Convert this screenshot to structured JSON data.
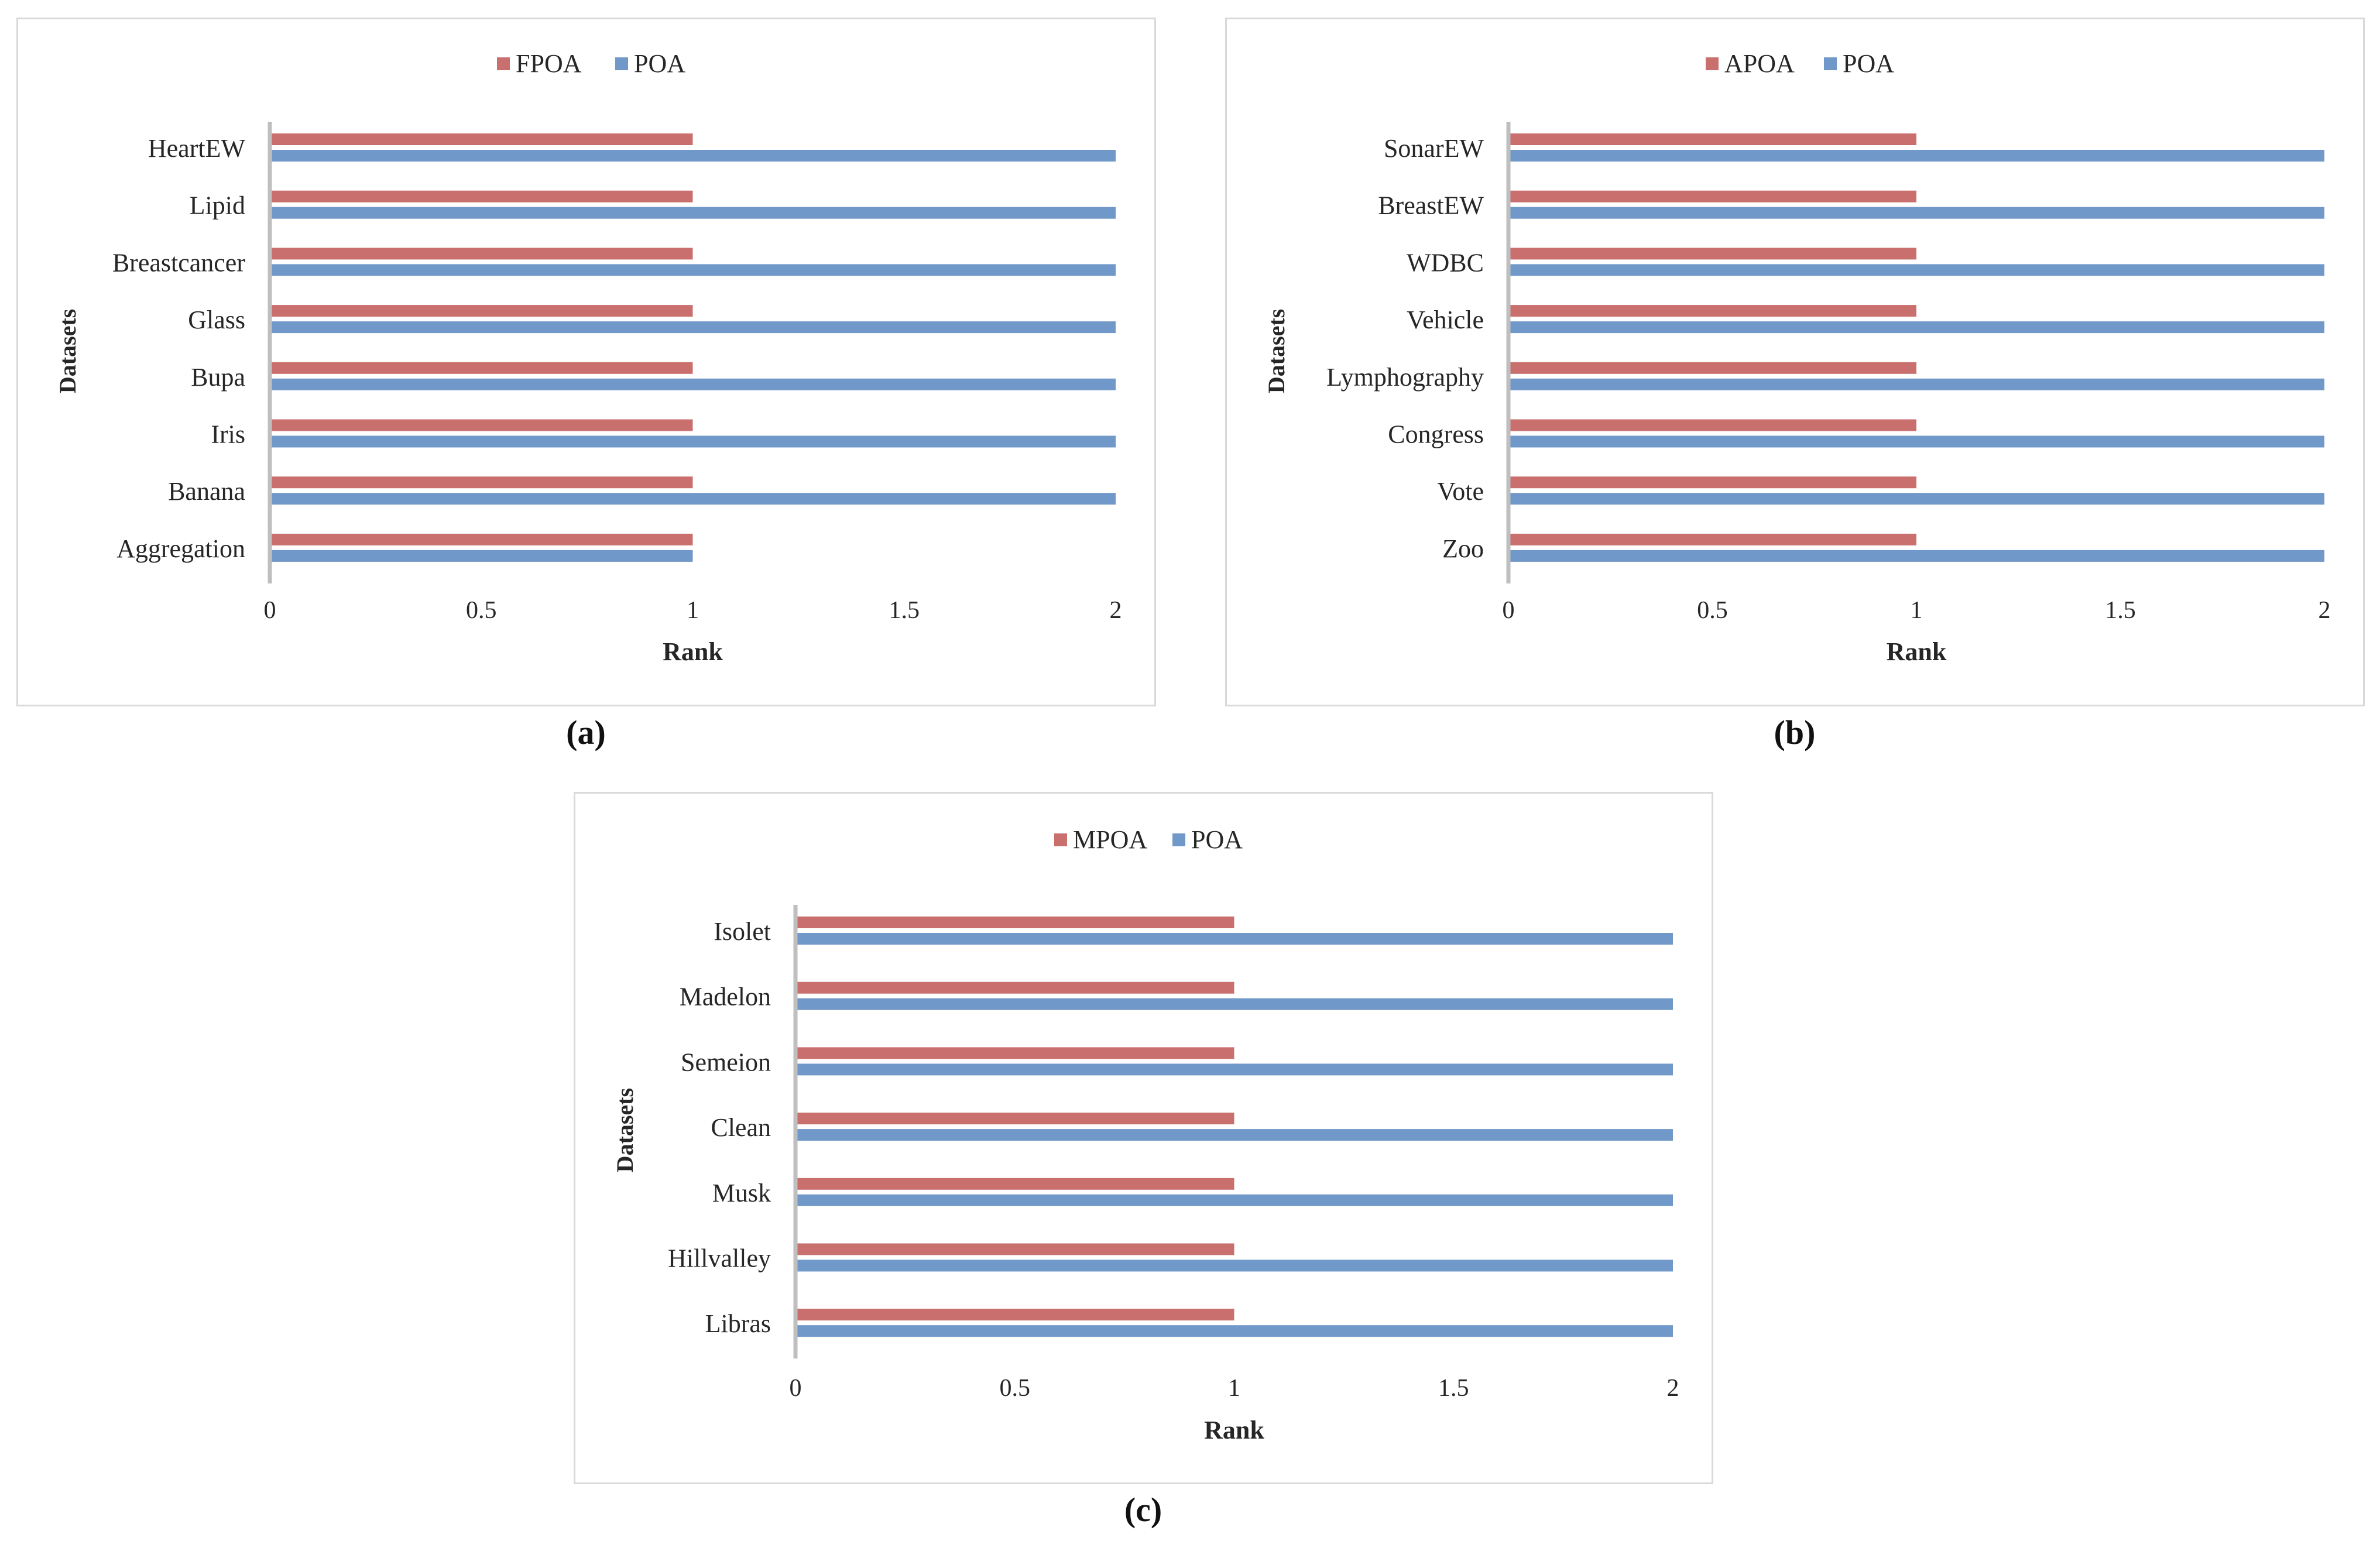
{
  "colors": {
    "series_red": "#c9706f",
    "series_blue": "#7098c8",
    "axis": "#bfbfbf",
    "text": "#262626"
  },
  "panels": [
    {
      "label": "(a)"
    },
    {
      "label": "(b)"
    },
    {
      "label": "(c)"
    }
  ],
  "chart_data": [
    {
      "type": "bar",
      "orientation": "horizontal",
      "title": "",
      "xlabel": "Rank",
      "ylabel": "Datasets",
      "xlim": [
        0,
        2
      ],
      "xticks": [
        "0",
        "0.5",
        "1",
        "1.5",
        "2"
      ],
      "legend_position": "top-center",
      "categories": [
        "HeartEW",
        "Lipid",
        "Breastcancer",
        "Glass",
        "Bupa",
        "Iris",
        "Banana",
        "Aggregation"
      ],
      "series": [
        {
          "name": "FPOA",
          "color": "#c9706f",
          "values": [
            1,
            1,
            1,
            1,
            1,
            1,
            1,
            1
          ]
        },
        {
          "name": "POA",
          "color": "#7098c8",
          "values": [
            2,
            2,
            2,
            2,
            2,
            2,
            2,
            1
          ]
        }
      ]
    },
    {
      "type": "bar",
      "orientation": "horizontal",
      "title": "",
      "xlabel": "Rank",
      "ylabel": "Datasets",
      "xlim": [
        0,
        2
      ],
      "xticks": [
        "0",
        "0.5",
        "1",
        "1.5",
        "2"
      ],
      "legend_position": "top-center",
      "categories": [
        "SonarEW",
        "BreastEW",
        "WDBC",
        "Vehicle",
        "Lymphography",
        "Congress",
        "Vote",
        "Zoo"
      ],
      "series": [
        {
          "name": "APOA",
          "color": "#c9706f",
          "values": [
            1,
            1,
            1,
            1,
            1,
            1,
            1,
            1
          ]
        },
        {
          "name": "POA",
          "color": "#7098c8",
          "values": [
            2,
            2,
            2,
            2,
            2,
            2,
            2,
            2
          ]
        }
      ]
    },
    {
      "type": "bar",
      "orientation": "horizontal",
      "title": "",
      "xlabel": "Rank",
      "ylabel": "Datasets",
      "xlim": [
        0,
        2
      ],
      "xticks": [
        "0",
        "0.5",
        "1",
        "1.5",
        "2"
      ],
      "legend_position": "top-center",
      "categories": [
        "Isolet",
        "Madelon",
        "Semeion",
        "Clean",
        "Musk",
        "Hillvalley",
        "Libras"
      ],
      "series": [
        {
          "name": "MPOA",
          "color": "#c9706f",
          "values": [
            1,
            1,
            1,
            1,
            1,
            1,
            1
          ]
        },
        {
          "name": "POA",
          "color": "#7098c8",
          "values": [
            2,
            2,
            2,
            2,
            2,
            2,
            2
          ]
        }
      ]
    }
  ]
}
